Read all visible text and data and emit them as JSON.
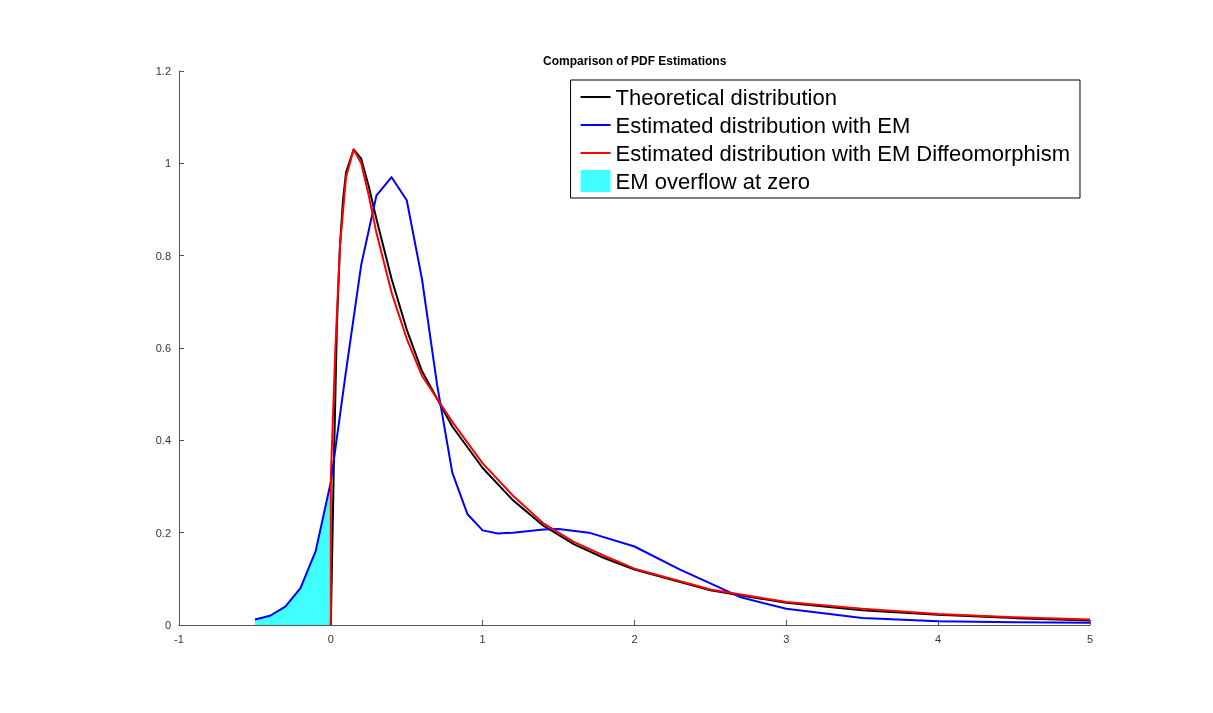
{
  "chart_data": {
    "type": "line",
    "title": "Comparison of PDF Estimations",
    "xlim": [
      -1,
      5
    ],
    "xticks": [
      -1,
      0,
      1,
      2,
      3,
      4,
      5
    ],
    "ylim": [
      0,
      1.2
    ],
    "yticks": [
      0,
      0.2,
      0.4,
      0.6,
      0.8,
      1,
      1.2
    ],
    "grid": false,
    "legend": "top right",
    "marker": "none",
    "series": [
      {
        "name": "Theoretical distribution",
        "color": "#000000",
        "x": [
          0,
          0.02,
          0.04,
          0.06,
          0.08,
          0.1,
          0.15,
          0.2,
          0.25,
          0.3,
          0.4,
          0.5,
          0.6,
          0.7,
          0.8,
          1.0,
          1.2,
          1.4,
          1.6,
          1.8,
          2.0,
          2.5,
          3.0,
          3.5,
          4.0,
          4.5,
          5.0
        ],
        "values": [
          0,
          0.35,
          0.65,
          0.82,
          0.92,
          0.98,
          1.03,
          1.01,
          0.95,
          0.88,
          0.75,
          0.64,
          0.55,
          0.49,
          0.43,
          0.34,
          0.27,
          0.215,
          0.175,
          0.145,
          0.12,
          0.075,
          0.048,
          0.032,
          0.022,
          0.015,
          0.01
        ]
      },
      {
        "name": "Estimated distribution with EM",
        "color": "#0000ff",
        "x": [
          -0.5,
          -0.4,
          -0.3,
          -0.2,
          -0.1,
          0,
          0.1,
          0.2,
          0.3,
          0.4,
          0.5,
          0.6,
          0.7,
          0.8,
          0.9,
          1.0,
          1.1,
          1.2,
          1.4,
          1.5,
          1.7,
          2.0,
          2.3,
          2.5,
          2.7,
          3.0,
          3.5,
          4.0,
          4.5,
          5.0
        ],
        "values": [
          0.012,
          0.02,
          0.04,
          0.08,
          0.16,
          0.31,
          0.55,
          0.78,
          0.93,
          0.97,
          0.92,
          0.75,
          0.52,
          0.33,
          0.24,
          0.205,
          0.198,
          0.2,
          0.207,
          0.208,
          0.2,
          0.17,
          0.12,
          0.09,
          0.06,
          0.035,
          0.015,
          0.008,
          0.006,
          0.005
        ]
      },
      {
        "name": "Estimated distribution with EM Diffeomorphism",
        "color": "#ff0000",
        "x": [
          0,
          0,
          0.03,
          0.06,
          0.1,
          0.15,
          0.2,
          0.25,
          0.3,
          0.4,
          0.5,
          0.6,
          0.7,
          0.8,
          1.0,
          1.2,
          1.4,
          1.6,
          1.8,
          2.0,
          2.5,
          3.0,
          3.5,
          4.0,
          4.5,
          5.0
        ],
        "values": [
          0,
          0.32,
          0.6,
          0.82,
          0.97,
          1.03,
          1.0,
          0.93,
          0.85,
          0.72,
          0.62,
          0.54,
          0.49,
          0.44,
          0.35,
          0.28,
          0.22,
          0.18,
          0.15,
          0.122,
          0.077,
          0.05,
          0.035,
          0.024,
          0.017,
          0.012
        ]
      },
      {
        "name": "EM overflow at zero",
        "type": "area",
        "color": "#40ffff",
        "x": [
          -0.5,
          -0.4,
          -0.3,
          -0.2,
          -0.1,
          0
        ],
        "values": [
          0.012,
          0.02,
          0.04,
          0.08,
          0.16,
          0.31
        ]
      }
    ]
  }
}
